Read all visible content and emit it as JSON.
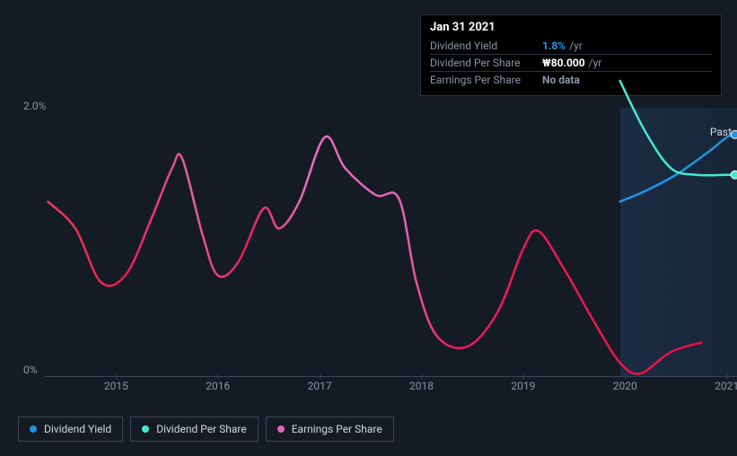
{
  "tooltip": {
    "title": "Jan 31 2021",
    "rows": [
      {
        "label": "Dividend Yield",
        "value": "1.8%",
        "suffix": "/yr",
        "value_color": "#2394df"
      },
      {
        "label": "Dividend Per Share",
        "value": "₩80.000",
        "suffix": "/yr",
        "value_color": "#ffffff"
      },
      {
        "label": "Earnings Per Share",
        "value": "No data",
        "suffix": "",
        "value_color": "#8a96a8"
      }
    ]
  },
  "chart": {
    "type": "line",
    "background_color": "#151b24",
    "grid_color": "#3a4556",
    "text_color": "#8a96a8",
    "xlim": [
      2014.3,
      2021.1
    ],
    "ylim": [
      0,
      2.0
    ],
    "yticks": [
      {
        "v": 0,
        "label": "0%"
      },
      {
        "v": 2.0,
        "label": "2.0%"
      }
    ],
    "xticks": [
      2015,
      2016,
      2017,
      2018,
      2019,
      2020,
      2021
    ],
    "future_start_x": 2019.95,
    "past_label": "Past",
    "series": {
      "eps": {
        "name": "Earnings Per Share",
        "color_start": "#eb0f5a",
        "color_end": "#e560c0",
        "stops": [
          {
            "off": 0,
            "c": "#ed3f52"
          },
          {
            "off": 0.12,
            "c": "#eb1b56"
          },
          {
            "off": 0.22,
            "c": "#e760a0"
          },
          {
            "off": 0.3,
            "c": "#eb1b56"
          },
          {
            "off": 0.4,
            "c": "#e86fc0"
          },
          {
            "off": 0.55,
            "c": "#e560b0"
          },
          {
            "off": 0.62,
            "c": "#eb1b56"
          },
          {
            "off": 0.78,
            "c": "#eb1b56"
          },
          {
            "off": 1,
            "c": "#eb0f3a"
          }
        ],
        "points": [
          [
            2014.33,
            1.3
          ],
          [
            2014.6,
            1.1
          ],
          [
            2014.85,
            0.7
          ],
          [
            2015.1,
            0.76
          ],
          [
            2015.35,
            1.18
          ],
          [
            2015.55,
            1.55
          ],
          [
            2015.65,
            1.62
          ],
          [
            2015.85,
            1.05
          ],
          [
            2016.0,
            0.75
          ],
          [
            2016.2,
            0.85
          ],
          [
            2016.45,
            1.25
          ],
          [
            2016.6,
            1.1
          ],
          [
            2016.8,
            1.3
          ],
          [
            2017.05,
            1.78
          ],
          [
            2017.25,
            1.55
          ],
          [
            2017.55,
            1.35
          ],
          [
            2017.78,
            1.32
          ],
          [
            2017.95,
            0.7
          ],
          [
            2018.15,
            0.3
          ],
          [
            2018.45,
            0.22
          ],
          [
            2018.75,
            0.48
          ],
          [
            2019.0,
            0.95
          ],
          [
            2019.15,
            1.08
          ],
          [
            2019.4,
            0.8
          ],
          [
            2019.7,
            0.4
          ],
          [
            2019.95,
            0.1
          ],
          [
            2020.15,
            0.02
          ],
          [
            2020.45,
            0.18
          ],
          [
            2020.75,
            0.25
          ]
        ]
      },
      "dyield": {
        "name": "Dividend Yield",
        "color": "#2394df",
        "points": [
          [
            2019.95,
            1.3
          ],
          [
            2020.2,
            1.38
          ],
          [
            2020.5,
            1.5
          ],
          [
            2020.8,
            1.66
          ],
          [
            2021.0,
            1.78
          ],
          [
            2021.08,
            1.8
          ]
        ]
      },
      "dps": {
        "name": "Dividend Per Share",
        "color": "#47e8d1",
        "points": [
          [
            2019.95,
            2.2
          ],
          [
            2020.2,
            1.82
          ],
          [
            2020.45,
            1.55
          ],
          [
            2020.7,
            1.5
          ],
          [
            2021.0,
            1.5
          ],
          [
            2021.08,
            1.5
          ]
        ]
      }
    }
  },
  "legend": [
    {
      "label": "Dividend Yield",
      "color": "#2394df"
    },
    {
      "label": "Dividend Per Share",
      "color": "#47e8d1"
    },
    {
      "label": "Earnings Per Share",
      "color": "#e560c0"
    }
  ]
}
